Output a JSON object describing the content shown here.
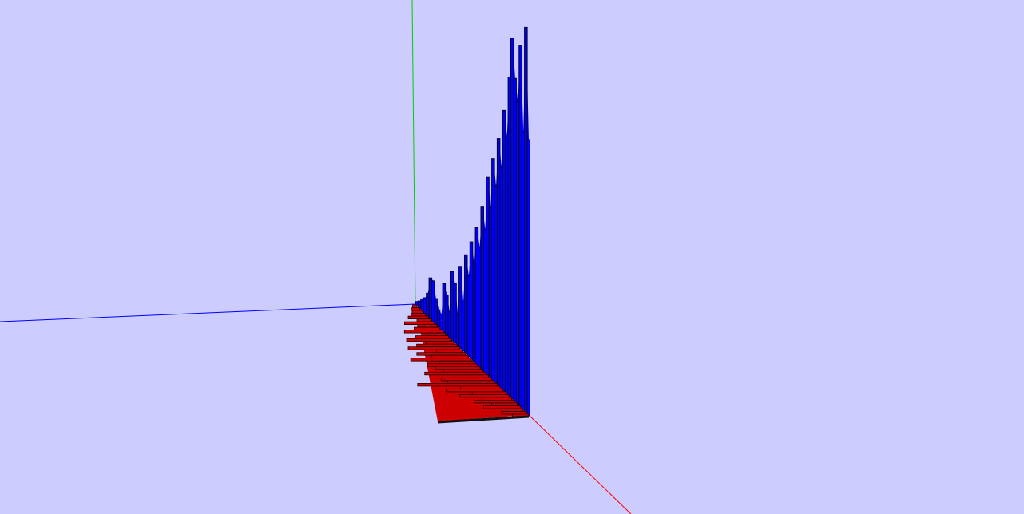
{
  "viewport": {
    "background": "#ccccff"
  },
  "axes": {
    "x_axis_color": "#ff0000",
    "y_axis_color": "#00cc00",
    "z_axis_color": "#0000ff"
  },
  "chart_data": {
    "type": "3d-histogram",
    "series": [
      {
        "color": "#0000ff",
        "values": [
          3,
          5,
          8,
          10,
          14,
          24,
          23,
          14,
          9,
          8,
          24,
          19,
          12,
          31,
          26,
          13,
          34,
          20,
          39,
          31,
          44,
          36,
          49,
          42,
          56,
          48,
          65,
          55,
          70,
          61,
          75,
          66,
          82,
          74,
          90,
          100,
          88,
          81,
          95,
          72,
          98,
          69
        ]
      },
      {
        "color": "#cc0000",
        "values": [
          4,
          7,
          9,
          12,
          16,
          11,
          22,
          14,
          18,
          26,
          12,
          21,
          28,
          17,
          24,
          30,
          15,
          27,
          20,
          32,
          18,
          25,
          22,
          19,
          29,
          16,
          23,
          21,
          35,
          17,
          24,
          14,
          20,
          12,
          16,
          10,
          14,
          8,
          9,
          6
        ]
      }
    ]
  }
}
